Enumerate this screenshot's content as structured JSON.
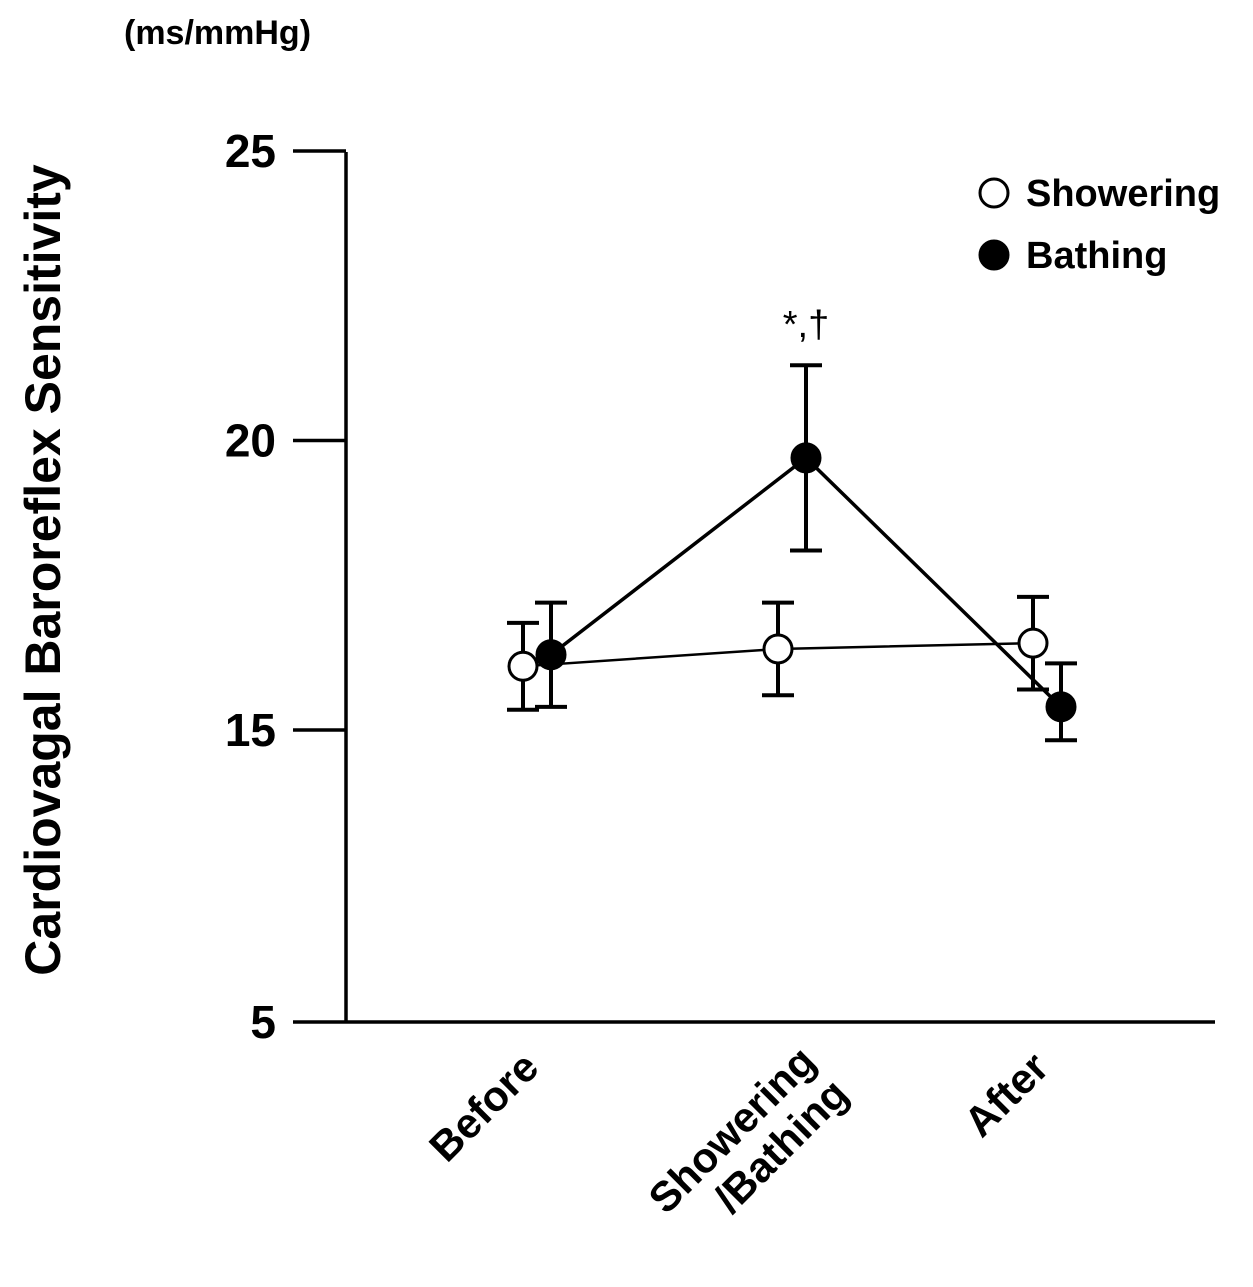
{
  "chart_data": {
    "type": "line",
    "title": "",
    "unit_label": "(ms/mmHg)",
    "ylabel": "Cardiovagal Baroreflex Sensitivity",
    "xlabel": "",
    "categories": [
      "Before",
      "Showering\n/Bathing",
      "After"
    ],
    "category_lines": [
      [
        "Before"
      ],
      [
        "Showering",
        "/Bathing"
      ],
      [
        "After"
      ]
    ],
    "yticks": [
      5,
      15,
      20,
      25
    ],
    "ytick_labels": [
      "5",
      "15",
      "20",
      "25"
    ],
    "ylim": [
      5,
      25
    ],
    "axis_break": true,
    "grid": false,
    "legend_position": "top-right",
    "series": [
      {
        "name": "Showering",
        "marker": "open-circle",
        "values": [
          16.1,
          16.4,
          16.5
        ],
        "error": [
          0.75,
          0.8,
          0.8
        ]
      },
      {
        "name": "Bathing",
        "marker": "filled-circle",
        "values": [
          16.3,
          19.7,
          15.4
        ],
        "error": [
          0.9,
          1.6,
          0.75
        ]
      }
    ],
    "annotations": [
      {
        "text": "*,†",
        "series": "Bathing",
        "category": "Showering\n/Bathing"
      }
    ],
    "colors": {
      "line": "#000000",
      "open_marker_fill": "#ffffff",
      "filled_marker_fill": "#000000"
    }
  }
}
